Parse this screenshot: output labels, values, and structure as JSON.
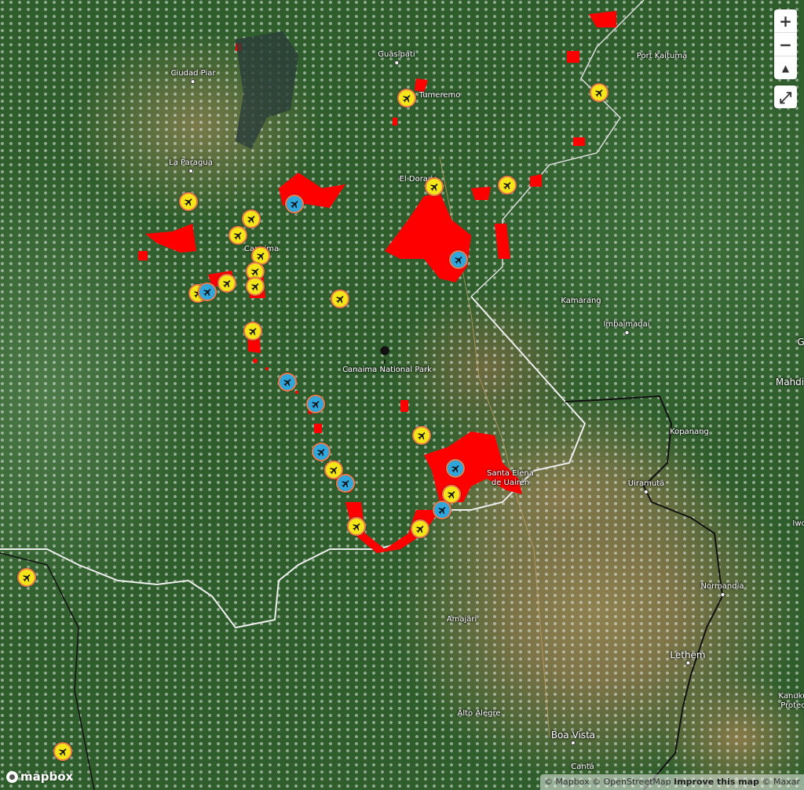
{
  "map": {
    "labels": {
      "port_kaituma": "Port Kaituma",
      "ciudad_piar": "Ciudad Piar",
      "guasipati": "Guasipati",
      "tumeremo": "Tumeremo",
      "la_paragua": "La Paragua",
      "el_dorado": "El Dorado",
      "canaima": "Canaima",
      "kamarang": "Kamarang",
      "imbaimadai": "Imbaimadai",
      "canaima_np": "Canaima National Park",
      "guyana": "G",
      "mahdia": "Mahdi",
      "kopanang": "Kopanang",
      "santa_elena_1": "Santa Elena",
      "santa_elena_2": "de Uairén",
      "uiramuta": "Uiramutã",
      "iwo": "Iwo",
      "normandia": "Normandia",
      "amajari": "Amajari",
      "lethem": "Lethem",
      "kanuku_1": "Kanuku",
      "kanuku_2": "Protec",
      "alto_alegre": "Alto Alegre",
      "boa_vista": "Boa Vista",
      "canta": "Cantá"
    },
    "marker_colors": {
      "airstrip": "#f5e61a",
      "airport": "#2fa7dc",
      "fire": "#ff0000"
    },
    "marker_icon": "airplane-icon"
  },
  "controls": {
    "zoom_in": "+",
    "zoom_out": "−",
    "compass": "▲",
    "fullscreen": "⤢"
  },
  "logo": {
    "text": "mapbox"
  },
  "attribution": {
    "mapbox": "© Mapbox",
    "osm": "© OpenStreetMap",
    "improve": "Improve this map",
    "maxar": "© Maxar"
  }
}
